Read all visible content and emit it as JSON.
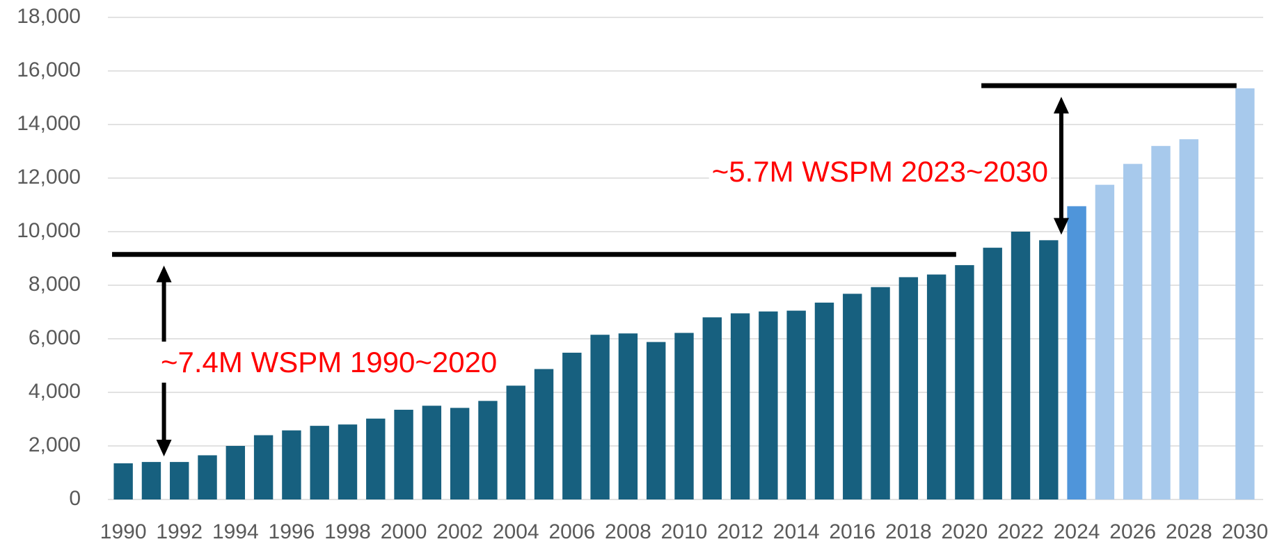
{
  "chart_data": {
    "type": "bar",
    "categories": [
      "1990",
      null,
      "1992",
      null,
      "1994",
      null,
      "1996",
      null,
      "1998",
      null,
      "2000",
      null,
      "2002",
      null,
      "2004",
      null,
      "2006",
      null,
      "2008",
      null,
      "2010",
      null,
      "2012",
      null,
      "2014",
      null,
      "2016",
      null,
      "2018",
      null,
      "2020",
      null,
      "2022",
      null,
      "2024",
      null,
      "2026",
      null,
      "2028",
      null,
      "2030"
    ],
    "values": [
      1350,
      1400,
      1400,
      1650,
      2000,
      2400,
      2580,
      2750,
      2800,
      3020,
      3350,
      3500,
      3420,
      3680,
      4250,
      4870,
      5480,
      6150,
      6200,
      5880,
      6220,
      6800,
      6950,
      7020,
      7050,
      7350,
      7680,
      7930,
      8300,
      8400,
      8750,
      9400,
      10000,
      9680,
      10950,
      11750,
      12530,
      13200,
      13450,
      null,
      15350
    ],
    "colors": [
      "#17607f",
      "#17607f",
      "#17607f",
      "#17607f",
      "#17607f",
      "#17607f",
      "#17607f",
      "#17607f",
      "#17607f",
      "#17607f",
      "#17607f",
      "#17607f",
      "#17607f",
      "#17607f",
      "#17607f",
      "#17607f",
      "#17607f",
      "#17607f",
      "#17607f",
      "#17607f",
      "#17607f",
      "#17607f",
      "#17607f",
      "#17607f",
      "#17607f",
      "#17607f",
      "#17607f",
      "#17607f",
      "#17607f",
      "#17607f",
      "#17607f",
      "#17607f",
      "#17607f",
      "#17607f",
      "#4f95da",
      "#a7c9ec",
      "#a7c9ec",
      "#a7c9ec",
      "#a7c9ec",
      "#a7c9ec",
      "#a7c9ec"
    ],
    "ylim": [
      0,
      18000
    ],
    "yticks": [
      {
        "value": 0,
        "label": "0"
      },
      {
        "value": 2000,
        "label": "2,000"
      },
      {
        "value": 4000,
        "label": "4,000"
      },
      {
        "value": 6000,
        "label": "6,000"
      },
      {
        "value": 8000,
        "label": "8,000"
      },
      {
        "value": 10000,
        "label": "10,000"
      },
      {
        "value": 12000,
        "label": "12,000"
      },
      {
        "value": 14000,
        "label": "14,000"
      },
      {
        "value": 16000,
        "label": "16,000"
      },
      {
        "value": 18000,
        "label": "18,000"
      }
    ],
    "grid": true,
    "annotations": [
      {
        "text": "~7.4M WSPM 1990~2020",
        "value": 9150,
        "start": 1990,
        "end": 2020
      },
      {
        "text": "~5.7M WSPM 2023~2030",
        "value": 15450,
        "start": 2021,
        "end": 2030
      }
    ]
  }
}
